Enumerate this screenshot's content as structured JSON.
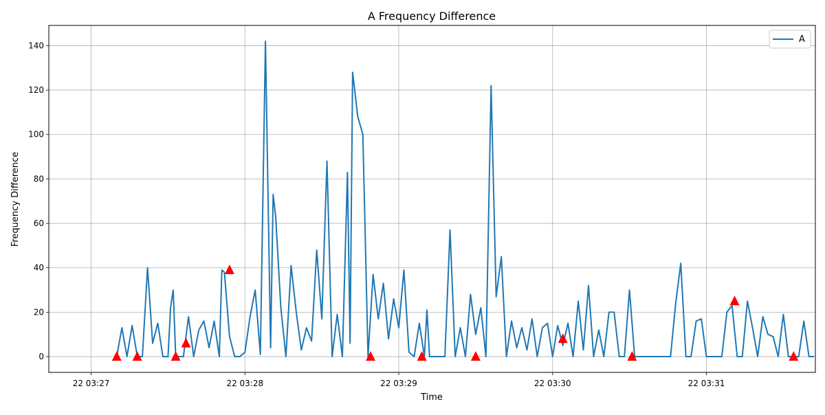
{
  "chart_data": {
    "type": "line",
    "title": "A Frequency Difference",
    "xlabel": "Time",
    "ylabel": "Frequency Difference",
    "x_unit": "seconds after 03:27:00",
    "xlim": [
      -16.5,
      282.5
    ],
    "ylim": [
      -7.1,
      149.1
    ],
    "x_ticks": [
      0,
      60,
      120,
      180,
      240
    ],
    "x_tick_labels": [
      "22 03:27",
      "22 03:28",
      "22 03:29",
      "22 03:30",
      "22 03:31"
    ],
    "y_ticks": [
      0,
      20,
      40,
      60,
      80,
      100,
      120,
      140
    ],
    "y_tick_labels": [
      "0",
      "20",
      "40",
      "60",
      "80",
      "100",
      "120",
      "140"
    ],
    "grid": true,
    "legend_position": "top-right",
    "series": [
      {
        "name": "A",
        "color": "#1f77b4",
        "x": [
          10,
          12,
          14,
          16,
          18,
          20,
          22,
          24,
          26,
          28,
          30,
          31,
          32,
          33,
          34,
          36,
          38,
          40,
          42,
          44,
          46,
          48,
          50,
          51,
          52,
          54,
          56,
          58,
          60,
          62,
          64,
          66,
          68,
          70,
          71,
          72,
          74,
          76,
          78,
          80,
          82,
          84,
          86,
          88,
          90,
          92,
          94,
          96,
          98,
          100,
          101,
          102,
          104,
          106,
          108,
          110,
          112,
          114,
          116,
          118,
          120,
          122,
          124,
          126,
          128,
          130,
          131,
          132,
          134,
          136,
          138,
          140,
          142,
          144,
          146,
          148,
          150,
          152,
          154,
          156,
          158,
          160,
          162,
          164,
          166,
          168,
          170,
          172,
          174,
          176,
          178,
          180,
          182,
          184,
          186,
          188,
          190,
          192,
          194,
          196,
          198,
          200,
          202,
          204,
          206,
          208,
          210,
          212,
          214,
          216,
          218,
          220,
          222,
          224,
          226,
          228,
          230,
          232,
          234,
          236,
          238,
          240,
          242,
          244,
          246,
          248,
          250,
          252,
          254,
          256,
          258,
          260,
          262,
          264,
          266,
          268,
          270,
          272,
          274,
          276,
          278,
          280,
          282
        ],
        "y": [
          0,
          13,
          0,
          14,
          0,
          0,
          40,
          6,
          15,
          0,
          0,
          22,
          30,
          0,
          0,
          0,
          18,
          0,
          12,
          16,
          4,
          16,
          0,
          39,
          38,
          9,
          0,
          0,
          2,
          18,
          30,
          1,
          142,
          4,
          73,
          63,
          22,
          0,
          41,
          20,
          3,
          13,
          7,
          48,
          17,
          88,
          0,
          19,
          0,
          83,
          6,
          128,
          108,
          100,
          0,
          37,
          17,
          33,
          8,
          26,
          13,
          39,
          2,
          0,
          15,
          0,
          21,
          0,
          0,
          0,
          0,
          57,
          0,
          13,
          0,
          28,
          10,
          22,
          0,
          122,
          27,
          45,
          0,
          16,
          4,
          13,
          3,
          17,
          0,
          13,
          15,
          0,
          14,
          5,
          15,
          0,
          25,
          3,
          32,
          0,
          12,
          0,
          20,
          20,
          0,
          0,
          30,
          0,
          0,
          0,
          0,
          0,
          0,
          0,
          0,
          24,
          42,
          0,
          0,
          16,
          17,
          0,
          0,
          0,
          0,
          20,
          23,
          0,
          0,
          25,
          13,
          0,
          18,
          10,
          9,
          0,
          19,
          0,
          0,
          0,
          16,
          0,
          0
        ]
      }
    ],
    "markers": {
      "color": "#ff0000",
      "shape": "triangle",
      "points": [
        {
          "x": 10,
          "y": 0
        },
        {
          "x": 18,
          "y": 0
        },
        {
          "x": 33,
          "y": 0
        },
        {
          "x": 37,
          "y": 6
        },
        {
          "x": 54,
          "y": 39
        },
        {
          "x": 109,
          "y": 0
        },
        {
          "x": 129,
          "y": 0
        },
        {
          "x": 150,
          "y": 0
        },
        {
          "x": 184,
          "y": 8
        },
        {
          "x": 211,
          "y": 0
        },
        {
          "x": 251,
          "y": 25
        },
        {
          "x": 274,
          "y": 0
        }
      ]
    }
  }
}
